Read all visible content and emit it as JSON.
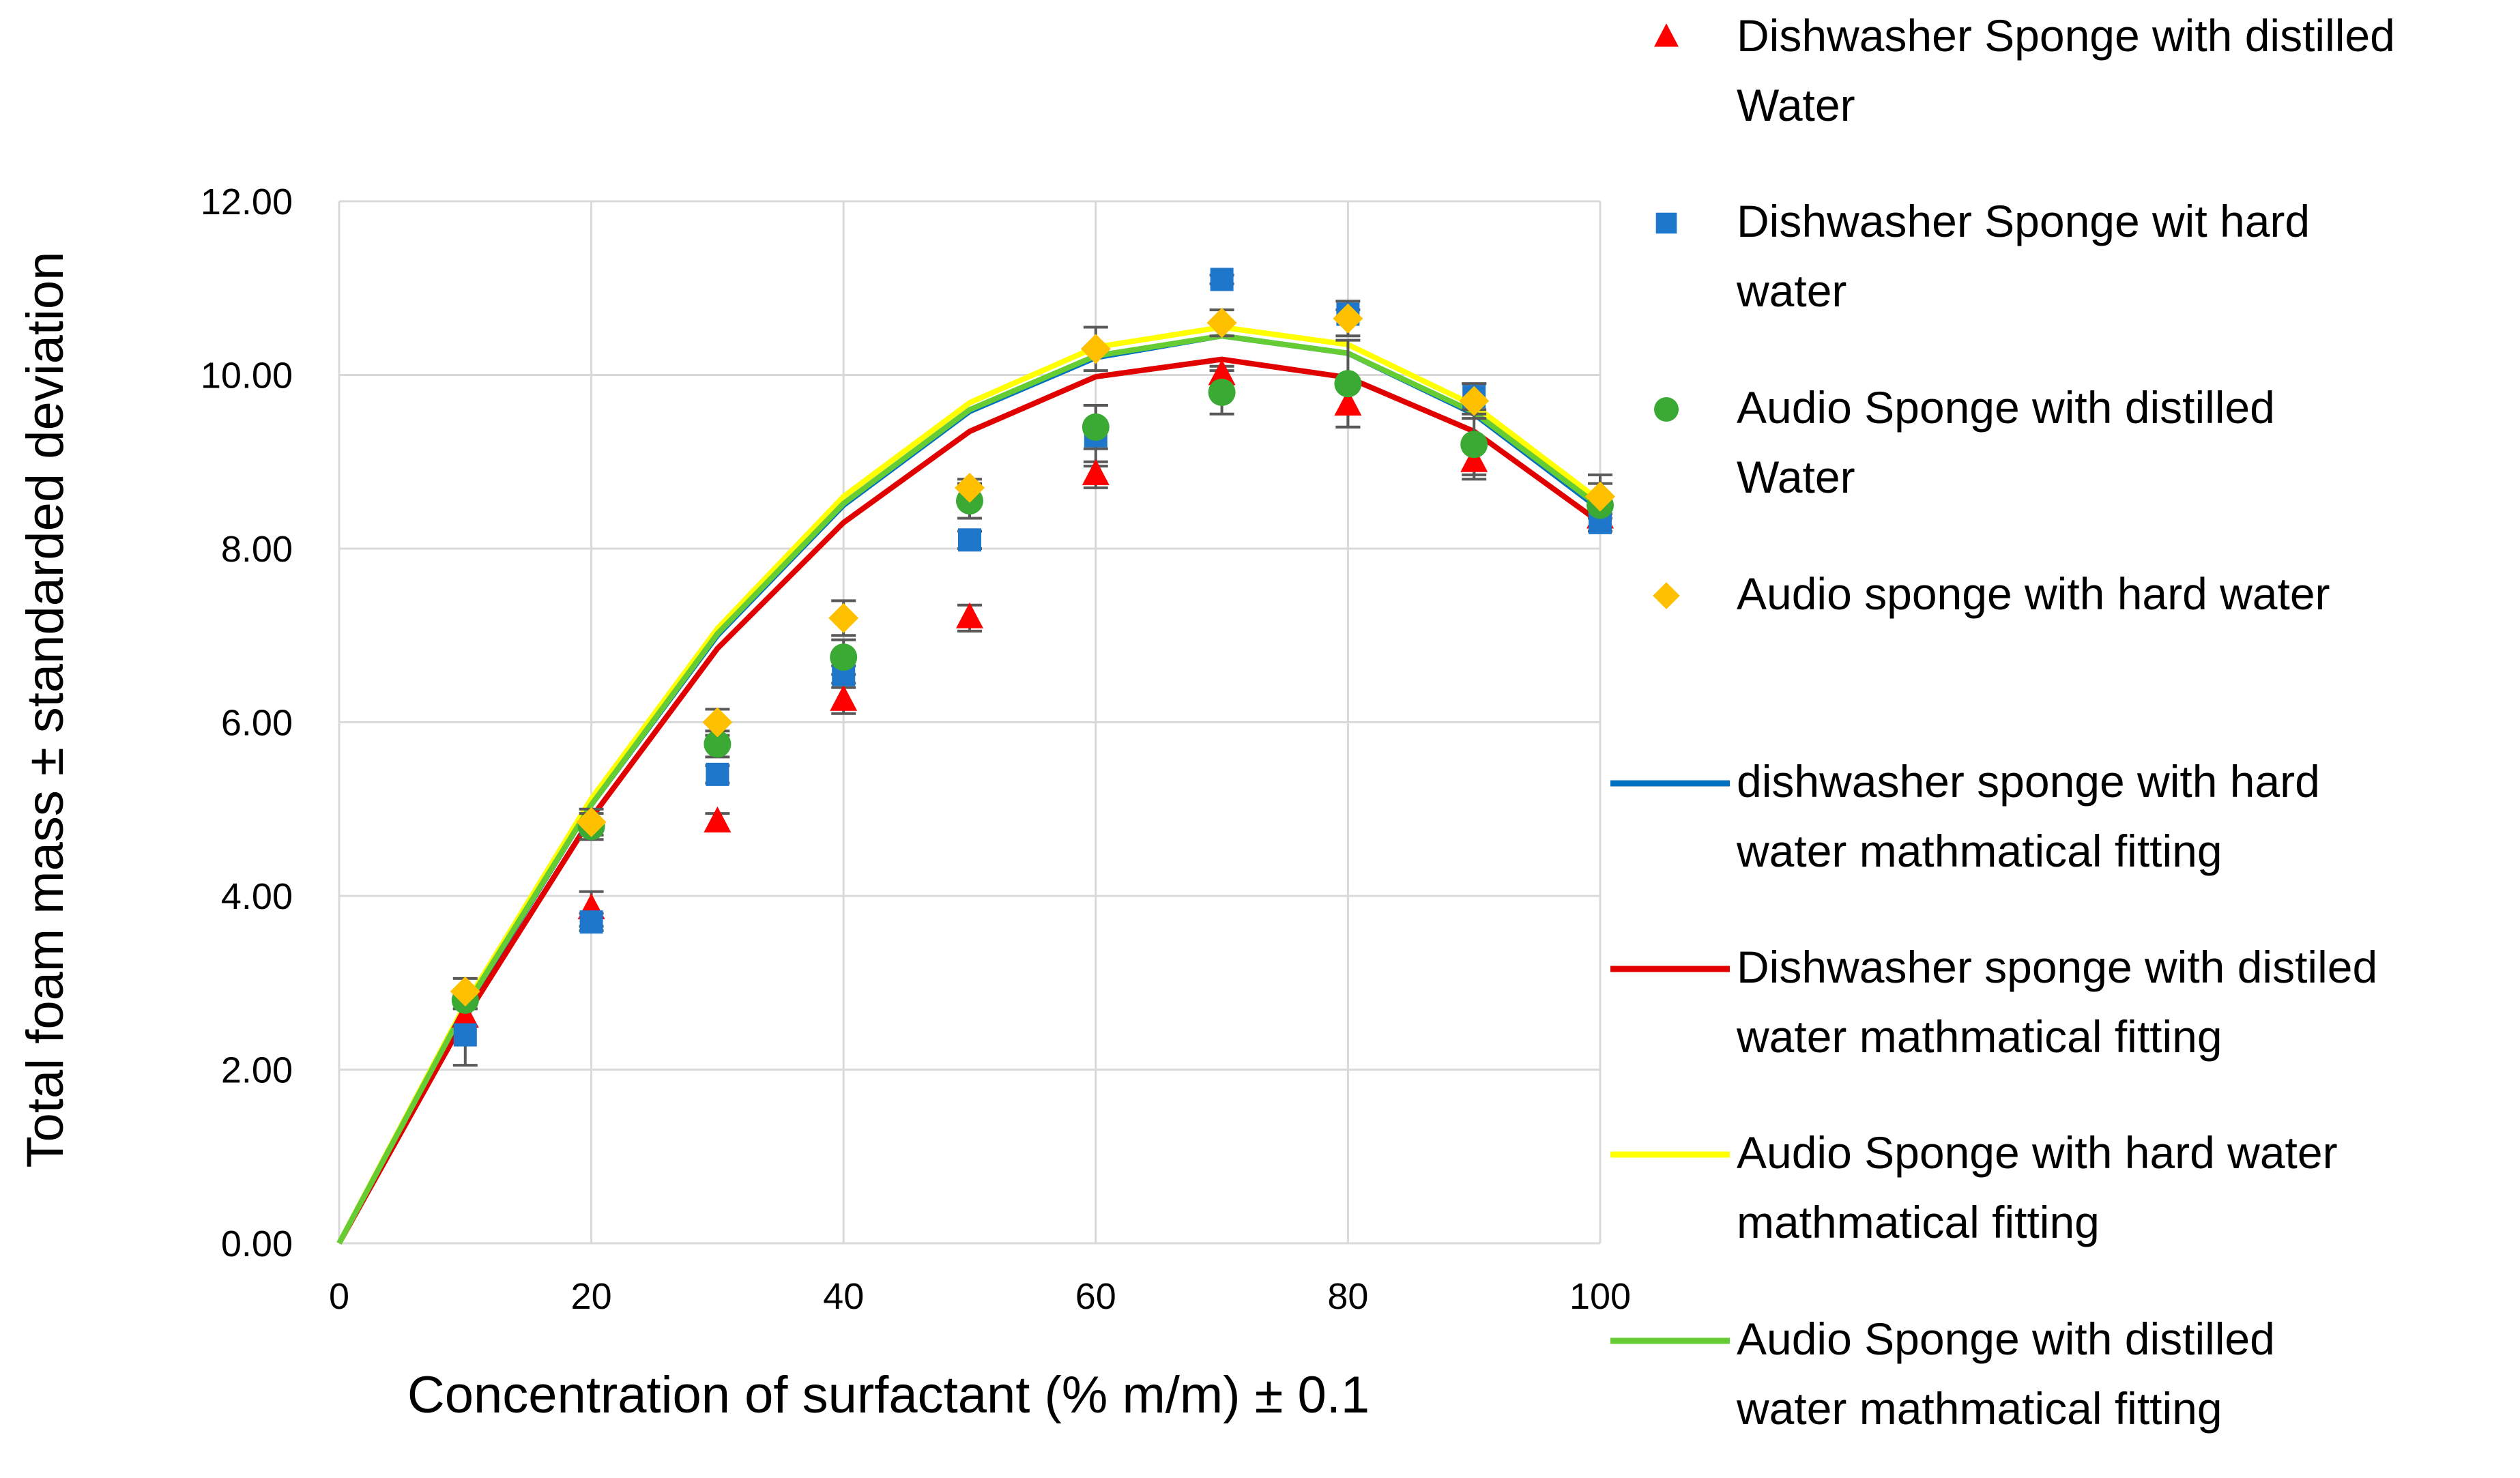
{
  "chart_data": {
    "type": "scatter",
    "title": "",
    "xlabel": "Concentration of surfactant (% m/m) ± 0.1",
    "ylabel": "Total foam mass ± standarded deviation",
    "xlim": [
      0,
      100
    ],
    "ylim": [
      0,
      12
    ],
    "x_ticks": [
      0,
      20,
      40,
      60,
      80,
      100
    ],
    "y_ticks": [
      0,
      2,
      4,
      6,
      8,
      10,
      12
    ],
    "y_tick_labels": [
      "0.00",
      "2.00",
      "4.00",
      "6.00",
      "8.00",
      "10.00",
      "12.00"
    ],
    "grid": true,
    "legend_position": "right",
    "scatter_series": [
      {
        "name": "Dishwasher Sponge with distilled Water",
        "legend_lines": [
          "Dishwasher Sponge with distilled",
          "Water"
        ],
        "marker": "triangle",
        "color": "#ff0000",
        "x": [
          10,
          20,
          30,
          40,
          50,
          60,
          70,
          80,
          90,
          100
        ],
        "y": [
          2.6,
          3.85,
          4.85,
          6.25,
          7.2,
          8.85,
          10.0,
          9.65,
          9.0,
          8.35
        ],
        "err": [
          0.1,
          0.2,
          0.1,
          0.15,
          0.15,
          0.15,
          0.1,
          0.25,
          0.2,
          0.1
        ]
      },
      {
        "name": "Dishwasher Sponge wit hard water",
        "legend_lines": [
          "Dishwasher Sponge wit hard",
          "water"
        ],
        "marker": "square",
        "color": "#1f77cc",
        "x": [
          10,
          20,
          30,
          40,
          50,
          60,
          70,
          80,
          90,
          100
        ],
        "y": [
          2.4,
          3.7,
          5.4,
          6.55,
          8.1,
          9.3,
          11.1,
          10.7,
          9.75,
          8.3
        ],
        "err": [
          0.35,
          0.1,
          0.1,
          0.1,
          0.1,
          0.35,
          0.05,
          0.05,
          0.15,
          0.1
        ]
      },
      {
        "name": "Audio Sponge with distilled Water",
        "legend_lines": [
          "Audio Sponge with distilled",
          "Water"
        ],
        "marker": "circle",
        "color": "#3aaa35",
        "x": [
          10,
          20,
          30,
          40,
          50,
          60,
          70,
          80,
          90,
          100
        ],
        "y": [
          2.8,
          4.8,
          5.75,
          6.75,
          8.55,
          9.4,
          9.8,
          9.9,
          9.2,
          8.5
        ],
        "err": [
          0.1,
          0.15,
          0.15,
          0.2,
          0.2,
          0.25,
          0.25,
          0.5,
          0.35,
          0.25
        ]
      },
      {
        "name": "Audio sponge with hard water",
        "legend_lines": [
          "Audio sponge with hard water"
        ],
        "marker": "diamond",
        "color": "#ffc000",
        "x": [
          10,
          20,
          30,
          40,
          50,
          60,
          70,
          80,
          90,
          100
        ],
        "y": [
          2.9,
          4.85,
          6.0,
          7.2,
          8.7,
          10.3,
          10.6,
          10.65,
          9.7,
          8.6
        ],
        "err": [
          0.15,
          0.15,
          0.15,
          0.2,
          0.1,
          0.25,
          0.15,
          0.2,
          0.2,
          0.25
        ]
      }
    ],
    "line_series": [
      {
        "name": "dishwasher sponge with hard water mathmatical fitting",
        "legend_lines": [
          "dishwasher sponge with hard",
          "water mathmatical fitting"
        ],
        "color": "#0070c0",
        "x": [
          0,
          10,
          20,
          30,
          40,
          50,
          60,
          70,
          80,
          90,
          100
        ],
        "y": [
          0,
          2.7,
          5.05,
          7.0,
          8.5,
          9.58,
          10.2,
          10.45,
          10.25,
          9.55,
          8.45
        ]
      },
      {
        "name": "Dishwasher sponge with distiled water mathmatical fitting",
        "legend_lines": [
          "Dishwasher sponge with distiled",
          "water mathmatical fitting"
        ],
        "color": "#e00000",
        "x": [
          0,
          10,
          20,
          30,
          40,
          50,
          60,
          70,
          80,
          90,
          100
        ],
        "y": [
          0,
          2.6,
          4.9,
          6.85,
          8.3,
          9.35,
          9.98,
          10.18,
          9.97,
          9.35,
          8.3
        ]
      },
      {
        "name": "Audio Sponge with hard water mathmatical fitting",
        "legend_lines": [
          "Audio Sponge with hard water",
          "mathmatical fitting"
        ],
        "color": "#ffff00",
        "x": [
          0,
          10,
          20,
          30,
          40,
          50,
          60,
          70,
          80,
          90,
          100
        ],
        "y": [
          0,
          2.75,
          5.12,
          7.08,
          8.6,
          9.68,
          10.32,
          10.55,
          10.35,
          9.65,
          8.55
        ]
      },
      {
        "name": "Audio Sponge with distilled water mathmatical fitting",
        "legend_lines": [
          "Audio Sponge with distilled",
          "water mathmatical fitting"
        ],
        "color": "#66cc33",
        "x": [
          0,
          10,
          20,
          30,
          40,
          50,
          60,
          70,
          80,
          90,
          100
        ],
        "y": [
          0,
          2.72,
          5.05,
          7.02,
          8.52,
          9.6,
          10.22,
          10.45,
          10.25,
          9.57,
          8.48
        ]
      }
    ]
  }
}
